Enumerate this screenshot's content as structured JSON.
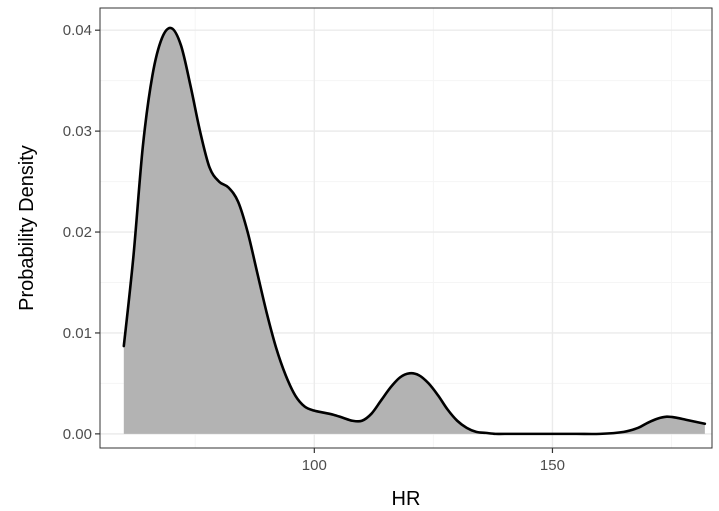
{
  "chart_data": {
    "type": "area",
    "title": "",
    "xlabel": "HR",
    "ylabel": "Probability Density",
    "xlim": [
      55,
      183.5
    ],
    "ylim": [
      -0.0014,
      0.0422
    ],
    "x_ticks": [
      100,
      150
    ],
    "x_tick_labels": [
      "100",
      "150"
    ],
    "y_ticks": [
      0.0,
      0.01,
      0.02,
      0.03,
      0.04
    ],
    "y_tick_labels": [
      "0.00",
      "0.01",
      "0.02",
      "0.03",
      "0.04"
    ],
    "grid": true,
    "legend": "none",
    "colors": {
      "fill": "#b3b3b3",
      "line": "#000000",
      "grid_major": "#ebebeb",
      "grid_minor": "#f5f5f5",
      "panel_border": "#333333"
    },
    "series": [
      {
        "x": [
          60,
          62,
          64,
          66,
          68,
          70,
          72,
          74,
          76,
          78,
          80,
          82,
          84,
          86,
          88,
          90,
          92,
          94,
          96,
          98,
          100,
          102,
          104,
          106,
          108,
          110,
          112,
          114,
          116,
          118,
          120,
          122,
          124,
          126,
          128,
          130,
          132,
          134,
          136,
          138,
          140,
          145,
          150,
          155,
          160,
          165,
          168,
          170,
          172,
          174,
          176,
          178,
          180,
          182
        ],
        "y": [
          0.0087,
          0.0175,
          0.0285,
          0.0355,
          0.0392,
          0.0402,
          0.0385,
          0.0345,
          0.03,
          0.0264,
          0.025,
          0.0244,
          0.023,
          0.02,
          0.016,
          0.012,
          0.0085,
          0.0058,
          0.0038,
          0.0027,
          0.0023,
          0.0021,
          0.0019,
          0.0016,
          0.0013,
          0.0013,
          0.002,
          0.0033,
          0.0046,
          0.0056,
          0.006,
          0.0058,
          0.005,
          0.0038,
          0.0024,
          0.0013,
          0.0006,
          0.0002,
          0.0001,
          0.0,
          0.0,
          0.0,
          0.0,
          0.0,
          0.0,
          0.0002,
          0.0006,
          0.0011,
          0.0015,
          0.0017,
          0.0016,
          0.0014,
          0.0012,
          0.001
        ]
      }
    ]
  }
}
